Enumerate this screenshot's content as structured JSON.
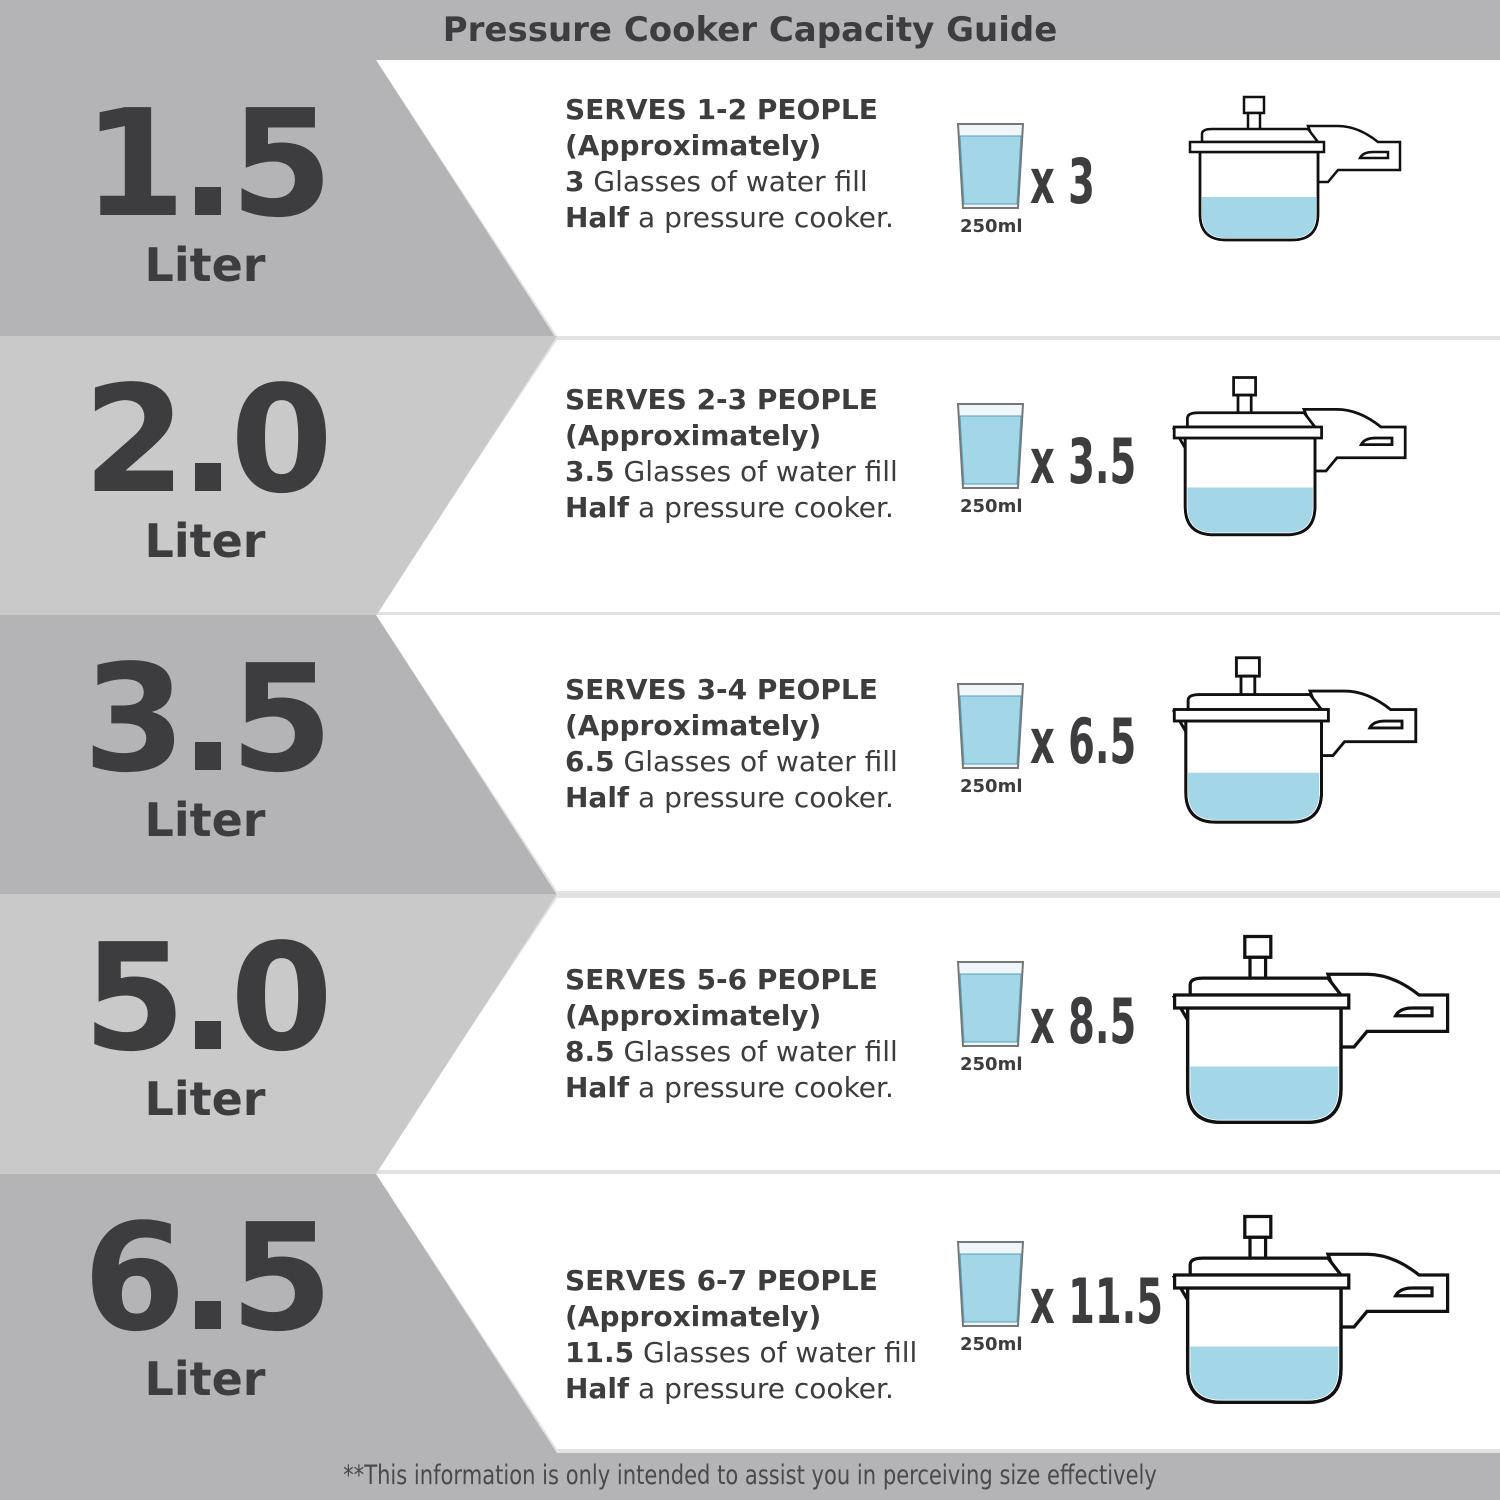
{
  "title": "Pressure Cooker Capacity Guide",
  "colors": {
    "dark_band": "#b4b4b6",
    "light_band": "#c9c9c9",
    "text": "#3d3d3f",
    "water": "#a3d6e6",
    "panel": "#ffffff"
  },
  "glass_volume": "250ml",
  "rows": [
    {
      "size": "1.5",
      "unit": "Liter",
      "serves": "SERVES 1-2 PEOPLE",
      "approx": "(Approximately)",
      "glasses": "3",
      "glasses_text": " Glasses of water fill",
      "half": "Half",
      "half_text": " a pressure cooker.",
      "multiplier": "x 3"
    },
    {
      "size": "2.0",
      "unit": "Liter",
      "serves": "SERVES 2-3 PEOPLE",
      "approx": "(Approximately)",
      "glasses": "3.5",
      "glasses_text": " Glasses of water fill",
      "half": "Half",
      "half_text": " a pressure cooker.",
      "multiplier": "x 3.5"
    },
    {
      "size": "3.5",
      "unit": "Liter",
      "serves": "SERVES 3-4 PEOPLE",
      "approx": "(Approximately)",
      "glasses": "6.5",
      "glasses_text": " Glasses of water fill",
      "half": "Half",
      "half_text": " a pressure cooker.",
      "multiplier": "x 6.5"
    },
    {
      "size": "5.0",
      "unit": "Liter",
      "serves": "SERVES 5-6 PEOPLE",
      "approx": "(Approximately)",
      "glasses": "8.5",
      "glasses_text": " Glasses of water fill",
      "half": "Half",
      "half_text": " a pressure cooker.",
      "multiplier": "x 8.5"
    },
    {
      "size": "6.5",
      "unit": "Liter",
      "serves": "SERVES 6-7 PEOPLE",
      "approx": "(Approximately)",
      "glasses": "11.5",
      "glasses_text": " Glasses of water fill",
      "half": "Half",
      "half_text": " a pressure cooker.",
      "multiplier": "x 11.5"
    }
  ],
  "footnote": "**This information is only intended to assist you in perceiving size effectively"
}
